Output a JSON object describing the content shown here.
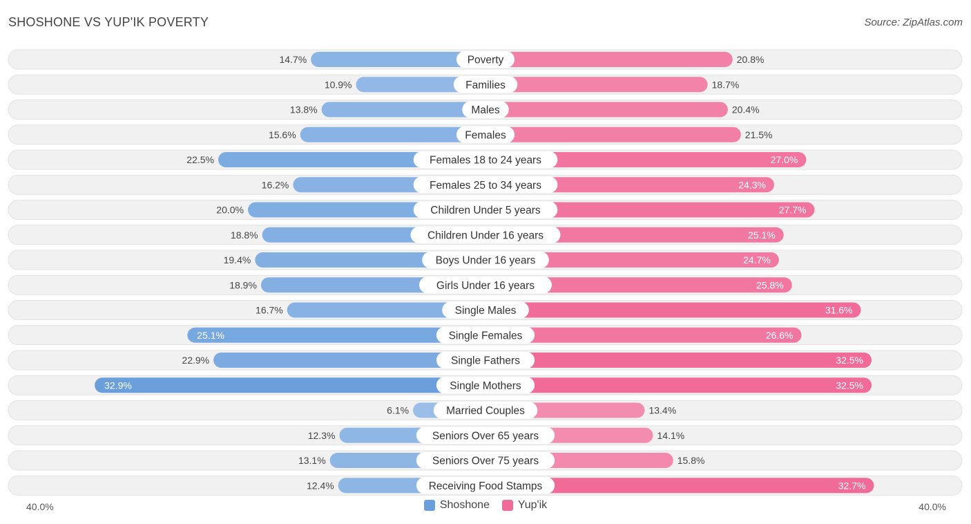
{
  "chart_data": {
    "type": "bar",
    "title": "SHOSHONE VS YUP'IK POVERTY",
    "source": "Source: ZipAtlas.com",
    "categories": [
      "Poverty",
      "Families",
      "Males",
      "Females",
      "Females 18 to 24 years",
      "Females 25 to 34 years",
      "Children Under 5 years",
      "Children Under 16 years",
      "Boys Under 16 years",
      "Girls Under 16 years",
      "Single Males",
      "Single Females",
      "Single Fathers",
      "Single Mothers",
      "Married Couples",
      "Seniors Over 65 years",
      "Seniors Over 75 years",
      "Receiving Food Stamps"
    ],
    "series": [
      {
        "name": "Shoshone",
        "color": "#6a9fdc",
        "values": [
          14.7,
          10.9,
          13.8,
          15.6,
          22.5,
          16.2,
          20.0,
          18.8,
          19.4,
          18.9,
          16.7,
          25.1,
          22.9,
          32.9,
          6.1,
          12.3,
          13.1,
          12.4
        ],
        "labels": [
          "14.7%",
          "10.9%",
          "13.8%",
          "15.6%",
          "22.5%",
          "16.2%",
          "20.0%",
          "18.8%",
          "19.4%",
          "18.9%",
          "16.7%",
          "25.1%",
          "22.9%",
          "32.9%",
          "6.1%",
          "12.3%",
          "13.1%",
          "12.4%"
        ]
      },
      {
        "name": "Yup'ik",
        "color": "#f06b98",
        "values": [
          20.8,
          18.7,
          20.4,
          21.5,
          27.0,
          24.3,
          27.7,
          25.1,
          24.7,
          25.8,
          31.6,
          26.6,
          32.5,
          32.5,
          13.4,
          14.1,
          15.8,
          32.7
        ],
        "labels": [
          "20.8%",
          "18.7%",
          "20.4%",
          "21.5%",
          "27.0%",
          "24.3%",
          "27.7%",
          "25.1%",
          "24.7%",
          "25.8%",
          "31.6%",
          "26.6%",
          "32.5%",
          "32.5%",
          "13.4%",
          "14.1%",
          "15.8%",
          "32.7%"
        ]
      }
    ],
    "xlim": [
      0,
      40
    ],
    "axis_left_label": "40.0%",
    "axis_right_label": "40.0%",
    "legend_position": "bottom-center"
  }
}
